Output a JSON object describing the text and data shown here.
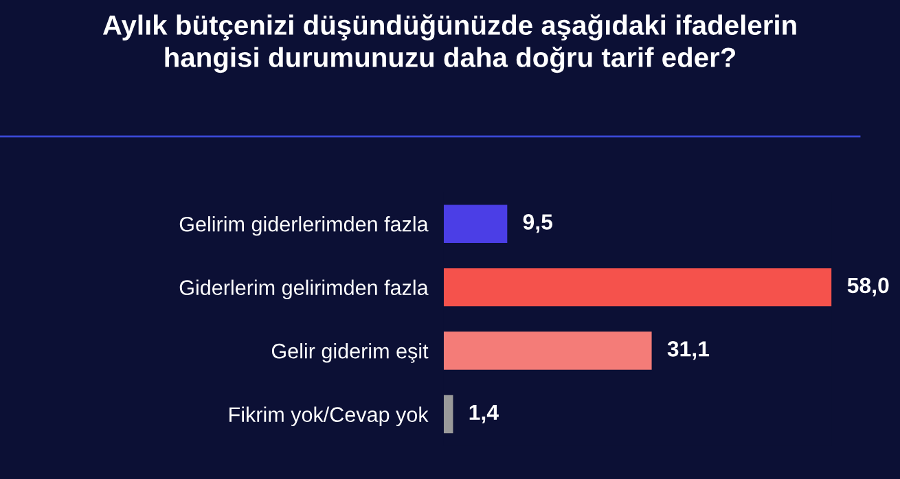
{
  "chart_data": {
    "type": "bar",
    "orientation": "horizontal",
    "title": "Aylık bütçenizi düşündüğünüzde aşağıdaki ifadelerin\nhangisi durumunuzu daha doğru tarif eder?",
    "categories": [
      "Gelirim giderlerimden fazla",
      "Giderlerim gelirimden fazla",
      "Gelir giderim eşit",
      "Fikrim yok/Cevap yok"
    ],
    "values": [
      9.5,
      58.0,
      31.1,
      1.4
    ],
    "value_labels": [
      "9,5",
      "58,0",
      "31,1",
      "1,4"
    ],
    "colors": [
      "#4b3ee6",
      "#f5524c",
      "#f47c78",
      "#9a9a9a"
    ],
    "grid": false,
    "legend": false
  }
}
